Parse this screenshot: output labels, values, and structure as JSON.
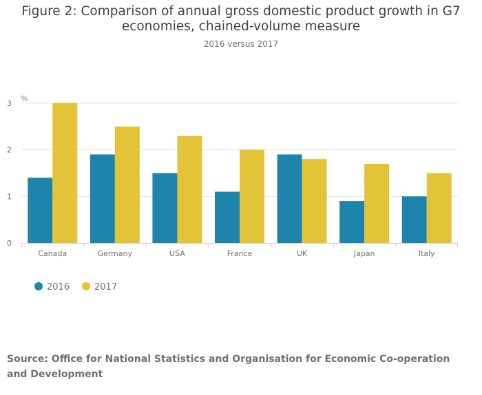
{
  "title": "Figure 2: Comparison of annual gross domestic product growth in G7 economies, chained-volume measure",
  "subtitle": "2016 versus 2017",
  "source": "Source: Office for National Statistics and Organisation for Economic Co-operation and Development",
  "chart_data": {
    "type": "bar",
    "unit_label": "%",
    "categories": [
      "Canada",
      "Germany",
      "USA",
      "France",
      "UK",
      "Japan",
      "Italy"
    ],
    "series": [
      {
        "name": "2016",
        "color": "#1e84ac",
        "values": [
          1.4,
          1.9,
          1.5,
          1.1,
          1.9,
          0.9,
          1.0
        ]
      },
      {
        "name": "2017",
        "color": "#e3c338",
        "values": [
          3.0,
          2.5,
          2.3,
          2.0,
          1.8,
          1.7,
          1.5
        ]
      }
    ],
    "ylim": [
      0,
      3
    ],
    "yticks": [
      0,
      1,
      2,
      3
    ],
    "grid": true,
    "legend": "bottom-left"
  }
}
